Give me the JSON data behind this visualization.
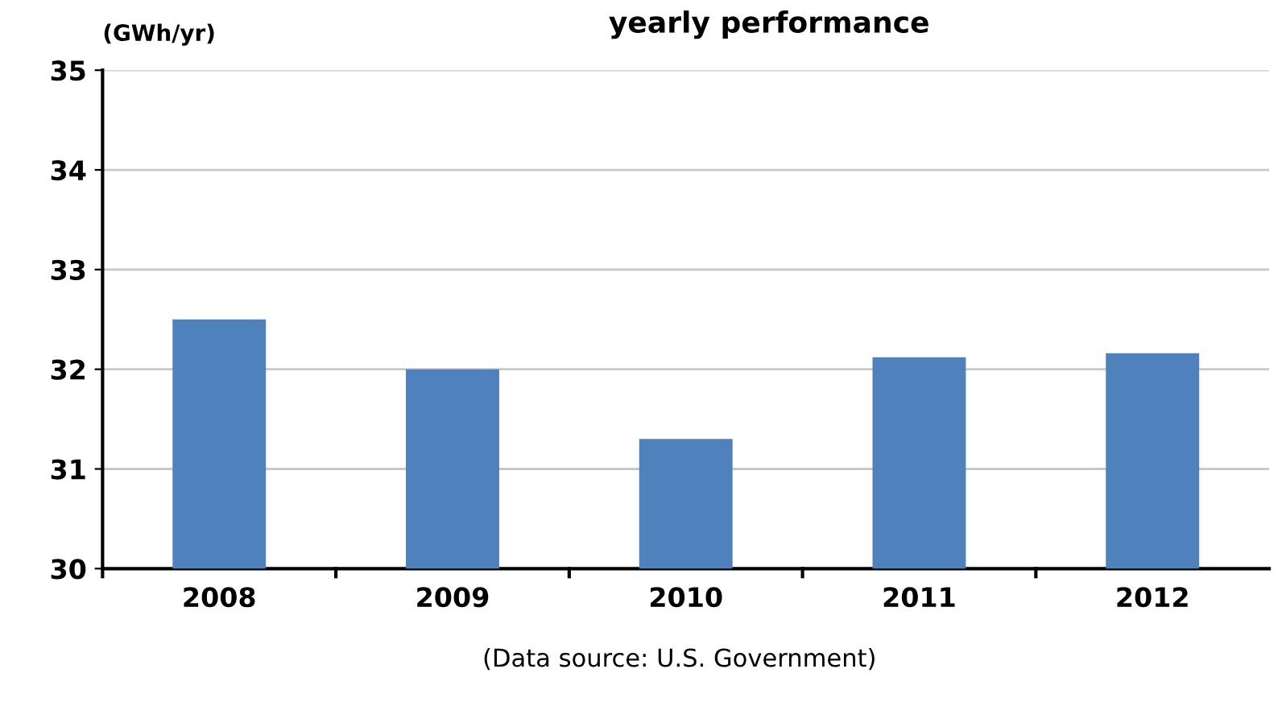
{
  "chart_data": {
    "type": "bar",
    "title": "yearly performance",
    "ylabel": "(GWh/yr)",
    "categories": [
      "2008",
      "2009",
      "2010",
      "2011",
      "2012"
    ],
    "values": [
      32.5,
      32.0,
      31.3,
      32.12,
      32.16
    ],
    "color": "#4f81bd",
    "ylim": [
      30,
      35
    ],
    "yticks": [
      30,
      31,
      32,
      33,
      34,
      35
    ],
    "grid": "y",
    "annotations": [
      "(Data source: U.S. Government)"
    ]
  }
}
